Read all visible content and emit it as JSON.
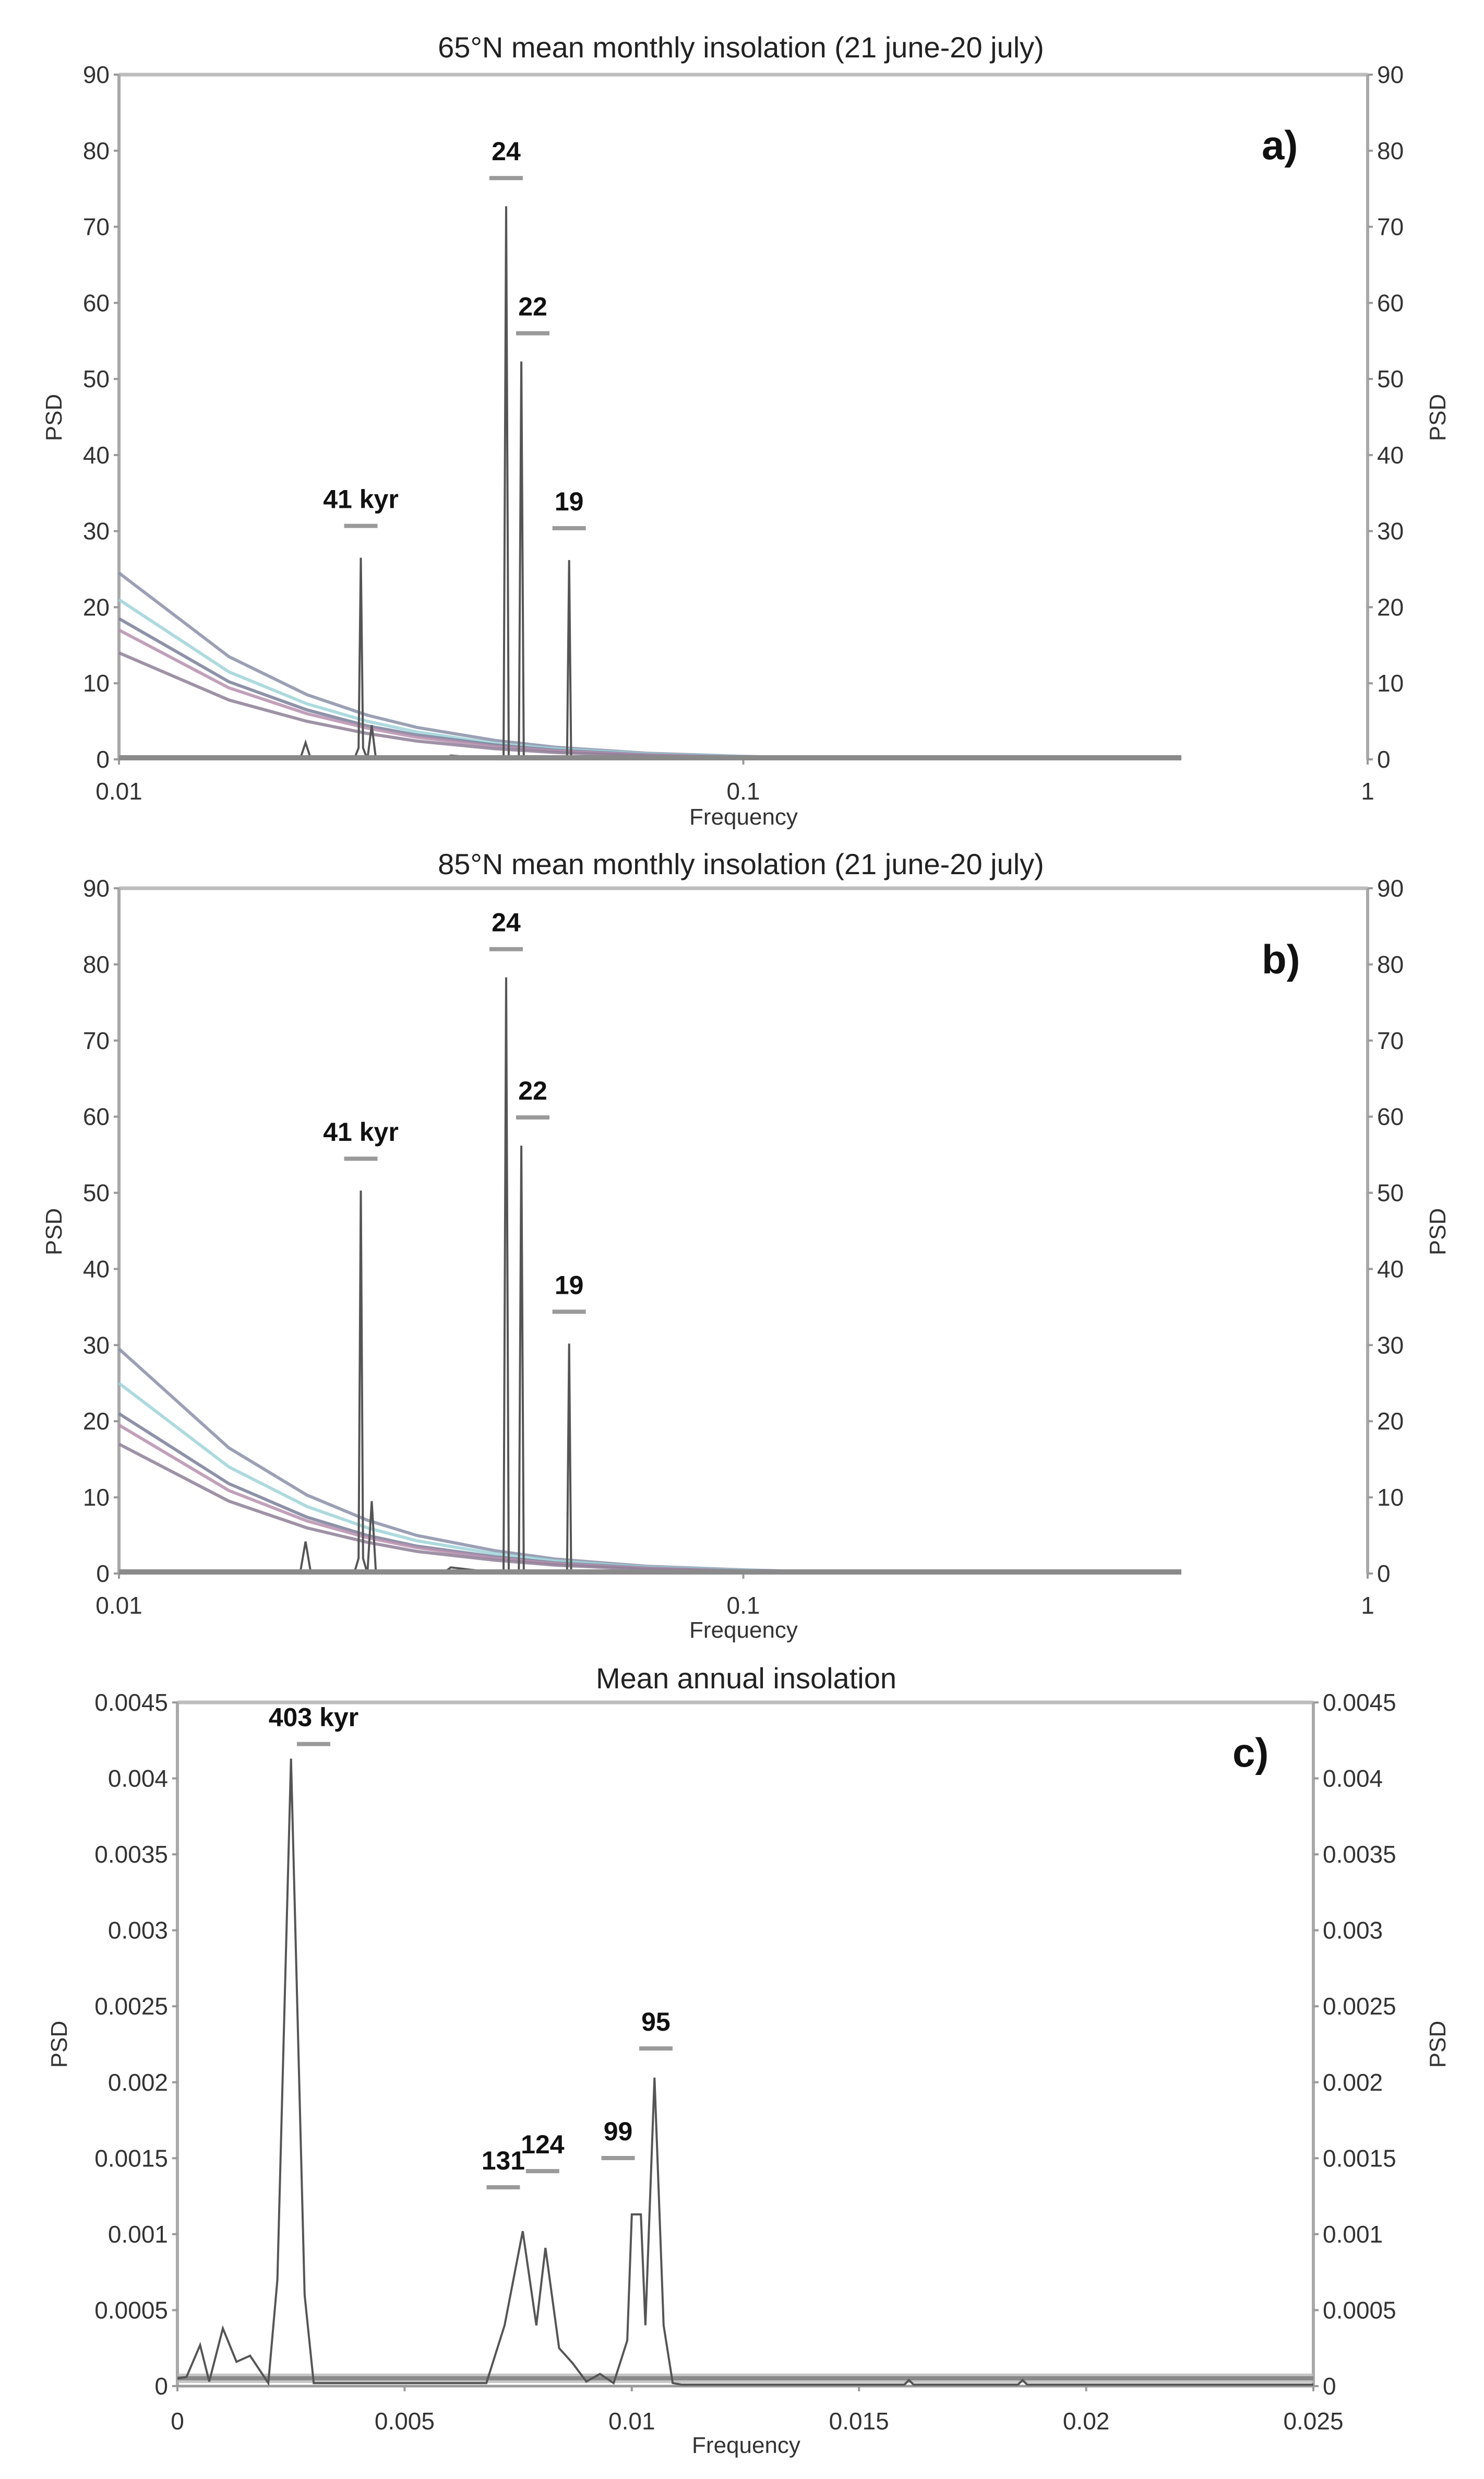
{
  "figure": {
    "panels": [
      {
        "id": "a",
        "title": "65°N mean monthly insolation (21 june-20 july)",
        "tag": "a)",
        "xlabel": "Frequency",
        "ylabel_left": "PSD",
        "ylabel_right": "PSD",
        "x_ticks": [
          "0.01",
          "0.1",
          "1"
        ],
        "y_ticks": [
          "0",
          "10",
          "20",
          "30",
          "40",
          "50",
          "60",
          "70",
          "80",
          "90"
        ],
        "peak_labels": [
          "41 kyr",
          "24",
          "22",
          "19"
        ]
      },
      {
        "id": "b",
        "title": "85°N mean monthly insolation (21 june-20 july)",
        "tag": "b)",
        "xlabel": "Frequency",
        "ylabel_left": "PSD",
        "ylabel_right": "PSD",
        "x_ticks": [
          "0.01",
          "0.1",
          "1"
        ],
        "y_ticks": [
          "0",
          "10",
          "20",
          "30",
          "40",
          "50",
          "60",
          "70",
          "80",
          "90"
        ],
        "peak_labels": [
          "41 kyr",
          "24",
          "22",
          "19"
        ]
      },
      {
        "id": "c",
        "title": "Mean annual insolation",
        "tag": "c)",
        "xlabel": "Frequency",
        "ylabel_left": "PSD",
        "ylabel_right": "PSD",
        "x_ticks": [
          "0",
          "0.005",
          "0.01",
          "0.015",
          "0.02",
          "0.025"
        ],
        "y_ticks": [
          "0",
          "0.0005",
          "0.001",
          "0.0015",
          "0.002",
          "0.0025",
          "0.003",
          "0.0035",
          "0.004",
          "0.0045"
        ],
        "peak_labels": [
          "403 kyr",
          "131",
          "124",
          "99",
          "95"
        ]
      }
    ]
  },
  "chart_data": [
    {
      "type": "line",
      "title": "65°N mean monthly insolation (21 june-20 july)",
      "panel_tag": "a)",
      "xlabel": "Frequency",
      "ylabel": "PSD",
      "xscale": "log",
      "xlim": [
        0.01,
        1
      ],
      "ylim": [
        0,
        90
      ],
      "x_ticks": [
        0.01,
        0.1,
        1
      ],
      "y_ticks": [
        0,
        10,
        20,
        30,
        40,
        50,
        60,
        70,
        80,
        90
      ],
      "grid": false,
      "peaks": [
        {
          "label": "41 kyr",
          "frequency": 0.0244,
          "psd": 26.5
        },
        {
          "label": "24",
          "frequency": 0.0417,
          "psd": 72.7
        },
        {
          "label": "22",
          "frequency": 0.0441,
          "psd": 52.3
        },
        {
          "label": "19",
          "frequency": 0.0526,
          "psd": 26.2
        }
      ],
      "series": [
        {
          "name": "spectrum",
          "color": "#333333",
          "x": [
            0.01,
            0.0195,
            0.0199,
            0.0203,
            0.0238,
            0.0242,
            0.0244,
            0.0246,
            0.025,
            0.0254,
            0.0258,
            0.033,
            0.034,
            0.0413,
            0.0417,
            0.0421,
            0.0437,
            0.0441,
            0.0445,
            0.0522,
            0.0526,
            0.053,
            0.085,
            0.5
          ],
          "y": [
            0,
            0,
            2.2,
            0,
            0,
            1.5,
            26.5,
            1.5,
            0,
            4.5,
            0,
            0,
            0.5,
            0,
            72.7,
            0,
            0,
            52.3,
            0,
            0,
            26.2,
            0,
            0.3,
            0
          ]
        },
        {
          "name": "confidence-upper-99",
          "color": "#8a8fa8",
          "x": [
            0.01,
            0.015,
            0.02,
            0.025,
            0.03,
            0.04,
            0.05,
            0.07,
            0.1,
            0.13
          ],
          "y": [
            24.5,
            13.5,
            8.5,
            5.8,
            4.2,
            2.5,
            1.6,
            0.8,
            0.4,
            0.2
          ]
        },
        {
          "name": "confidence-upper-95",
          "color": "#9fd3d8",
          "x": [
            0.01,
            0.015,
            0.02,
            0.025,
            0.03,
            0.04,
            0.05,
            0.07,
            0.1,
            0.13
          ],
          "y": [
            21.0,
            11.5,
            7.3,
            5.0,
            3.6,
            2.1,
            1.4,
            0.7,
            0.35,
            0.18
          ]
        },
        {
          "name": "red-noise-mean",
          "color": "#7a7f9a",
          "x": [
            0.01,
            0.015,
            0.02,
            0.025,
            0.03,
            0.04,
            0.05,
            0.07,
            0.1,
            0.13
          ],
          "y": [
            18.5,
            10.2,
            6.5,
            4.4,
            3.2,
            1.9,
            1.2,
            0.6,
            0.3,
            0.15
          ]
        },
        {
          "name": "confidence-upper-90",
          "color": "#b78fae",
          "x": [
            0.01,
            0.015,
            0.02,
            0.025,
            0.03,
            0.04,
            0.05,
            0.07,
            0.1,
            0.13
          ],
          "y": [
            17.0,
            9.4,
            6.0,
            4.1,
            2.9,
            1.7,
            1.1,
            0.55,
            0.28,
            0.14
          ]
        },
        {
          "name": "confidence-lower",
          "color": "#8e7f96",
          "x": [
            0.01,
            0.015,
            0.02,
            0.025,
            0.03,
            0.04,
            0.05,
            0.07,
            0.1,
            0.13
          ],
          "y": [
            14.0,
            7.8,
            5.0,
            3.4,
            2.4,
            1.4,
            0.9,
            0.45,
            0.22,
            0.11
          ]
        }
      ]
    },
    {
      "type": "line",
      "title": "85°N mean monthly insolation (21 june-20 july)",
      "panel_tag": "b)",
      "xlabel": "Frequency",
      "ylabel": "PSD",
      "xscale": "log",
      "xlim": [
        0.01,
        1
      ],
      "ylim": [
        0,
        90
      ],
      "x_ticks": [
        0.01,
        0.1,
        1
      ],
      "y_ticks": [
        0,
        10,
        20,
        30,
        40,
        50,
        60,
        70,
        80,
        90
      ],
      "grid": false,
      "peaks": [
        {
          "label": "41 kyr",
          "frequency": 0.0244,
          "psd": 50.3
        },
        {
          "label": "24",
          "frequency": 0.0417,
          "psd": 78.3
        },
        {
          "label": "22",
          "frequency": 0.0441,
          "psd": 56.2
        },
        {
          "label": "19",
          "frequency": 0.0526,
          "psd": 30.2
        }
      ],
      "series": [
        {
          "name": "spectrum",
          "color": "#333333",
          "x": [
            0.01,
            0.0195,
            0.0199,
            0.0203,
            0.0238,
            0.0242,
            0.0244,
            0.0246,
            0.025,
            0.0254,
            0.0258,
            0.033,
            0.034,
            0.0413,
            0.0417,
            0.0421,
            0.0437,
            0.0441,
            0.0445,
            0.0522,
            0.0526,
            0.053,
            0.085,
            0.5
          ],
          "y": [
            0,
            0,
            4.2,
            0,
            0,
            2.0,
            50.3,
            2.0,
            0,
            9.5,
            0,
            0,
            0.8,
            0,
            78.3,
            0,
            0,
            56.2,
            0,
            0,
            30.2,
            0,
            0.4,
            0
          ]
        },
        {
          "name": "confidence-upper-99",
          "color": "#8a8fa8",
          "x": [
            0.01,
            0.015,
            0.02,
            0.025,
            0.03,
            0.04,
            0.05,
            0.07,
            0.1,
            0.13
          ],
          "y": [
            29.5,
            16.5,
            10.3,
            7.0,
            5.0,
            3.0,
            1.9,
            0.95,
            0.48,
            0.24
          ]
        },
        {
          "name": "confidence-upper-95",
          "color": "#9fd3d8",
          "x": [
            0.01,
            0.015,
            0.02,
            0.025,
            0.03,
            0.04,
            0.05,
            0.07,
            0.1,
            0.13
          ],
          "y": [
            25.0,
            14.0,
            8.8,
            6.0,
            4.3,
            2.6,
            1.65,
            0.82,
            0.41,
            0.2
          ]
        },
        {
          "name": "red-noise-mean",
          "color": "#7a7f9a",
          "x": [
            0.01,
            0.015,
            0.02,
            0.025,
            0.03,
            0.04,
            0.05,
            0.07,
            0.1,
            0.13
          ],
          "y": [
            21.0,
            11.8,
            7.4,
            5.0,
            3.6,
            2.2,
            1.4,
            0.7,
            0.35,
            0.17
          ]
        },
        {
          "name": "confidence-upper-90",
          "color": "#b78fae",
          "x": [
            0.01,
            0.015,
            0.02,
            0.025,
            0.03,
            0.04,
            0.05,
            0.07,
            0.1,
            0.13
          ],
          "y": [
            19.5,
            10.9,
            6.9,
            4.7,
            3.4,
            2.0,
            1.3,
            0.65,
            0.32,
            0.16
          ]
        },
        {
          "name": "confidence-lower",
          "color": "#8e7f96",
          "x": [
            0.01,
            0.015,
            0.02,
            0.025,
            0.03,
            0.04,
            0.05,
            0.07,
            0.1,
            0.13
          ],
          "y": [
            17.0,
            9.5,
            6.0,
            4.1,
            2.9,
            1.75,
            1.1,
            0.55,
            0.28,
            0.14
          ]
        }
      ]
    },
    {
      "type": "line",
      "title": "Mean annual insolation",
      "panel_tag": "c)",
      "xlabel": "Frequency",
      "ylabel": "PSD",
      "xscale": "linear",
      "xlim": [
        0,
        0.025
      ],
      "ylim": [
        0,
        0.0045
      ],
      "x_ticks": [
        0,
        0.005,
        0.01,
        0.015,
        0.02,
        0.025
      ],
      "y_ticks": [
        0,
        0.0005,
        0.001,
        0.0015,
        0.002,
        0.0025,
        0.003,
        0.0035,
        0.004,
        0.0045
      ],
      "grid": false,
      "peaks": [
        {
          "label": "403 kyr",
          "frequency": 0.00248,
          "psd": 0.00413
        },
        {
          "label": "131",
          "frequency": 0.00763,
          "psd": 0.00102
        },
        {
          "label": "124",
          "frequency": 0.00806,
          "psd": 0.00091
        },
        {
          "label": "99",
          "frequency": 0.0101,
          "psd": 0.00113
        },
        {
          "label": "95",
          "frequency": 0.01053,
          "psd": 0.00203
        }
      ],
      "series": [
        {
          "name": "spectrum",
          "color": "#444444",
          "x": [
            0,
            0.0002,
            0.0005,
            0.0007,
            0.001,
            0.0013,
            0.0016,
            0.002,
            0.0022,
            0.0025,
            0.0028,
            0.003,
            0.0068,
            0.0072,
            0.0076,
            0.0079,
            0.0081,
            0.0084,
            0.0087,
            0.009,
            0.0093,
            0.0096,
            0.0099,
            0.01,
            0.0102,
            0.0103,
            0.0105,
            0.0107,
            0.0109,
            0.0111,
            0.016,
            0.0161,
            0.0162,
            0.0185,
            0.0186,
            0.0187,
            0.025
          ],
          "y": [
            5e-05,
            6e-05,
            0.00027,
            3e-05,
            0.00038,
            0.00016,
            0.0002,
            2e-05,
            0.0007,
            0.00413,
            0.0006,
            2e-05,
            2e-05,
            0.0004,
            0.00102,
            0.0004,
            0.00091,
            0.00025,
            0.00015,
            3e-05,
            8e-05,
            2e-05,
            0.0003,
            0.00113,
            0.00113,
            0.0004,
            0.00203,
            0.0004,
            2e-05,
            1e-05,
            1e-05,
            4e-05,
            1e-05,
            1e-05,
            4e-05,
            1e-05,
            1e-05
          ]
        },
        {
          "name": "confidence-band",
          "color": "#8a8a8a",
          "x": [
            0,
            0.025
          ],
          "y": [
            5e-05,
            5e-05
          ]
        }
      ]
    }
  ]
}
